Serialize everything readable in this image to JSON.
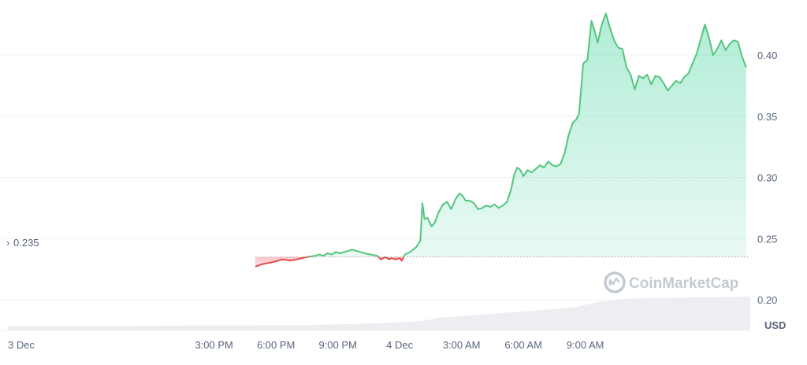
{
  "chart_data": {
    "type": "line",
    "currency": "USD",
    "baseline": {
      "value": 0.235,
      "label": "0.235"
    },
    "ylim": [
      0.175,
      0.445
    ],
    "y_ticks": [
      {
        "value": 0.4,
        "label": "0.40"
      },
      {
        "value": 0.35,
        "label": "0.35"
      },
      {
        "value": 0.3,
        "label": "0.30"
      },
      {
        "value": 0.25,
        "label": "0.25"
      },
      {
        "value": 0.2,
        "label": "0.20"
      }
    ],
    "x_ticks": [
      {
        "t": 0,
        "label": "3 Dec"
      },
      {
        "t": 10,
        "label": "3:00 PM"
      },
      {
        "t": 13,
        "label": "6:00 PM"
      },
      {
        "t": 16,
        "label": "9:00 PM"
      },
      {
        "t": 19,
        "label": "4 Dec"
      },
      {
        "t": 22,
        "label": "3:00 AM"
      },
      {
        "t": 25,
        "label": "6:00 AM"
      },
      {
        "t": 28,
        "label": "9:00 AM"
      }
    ],
    "series": [
      {
        "name": "",
        "points": [
          [
            12.0,
            0.227
          ],
          [
            12.3,
            0.229
          ],
          [
            12.6,
            0.23
          ],
          [
            12.9,
            0.231
          ],
          [
            13.3,
            0.233
          ],
          [
            13.7,
            0.232
          ],
          [
            14.0,
            0.233
          ],
          [
            14.5,
            0.235
          ],
          [
            14.9,
            0.236
          ],
          [
            15.1,
            0.237
          ],
          [
            15.3,
            0.236
          ],
          [
            15.5,
            0.238
          ],
          [
            15.7,
            0.237
          ],
          [
            15.9,
            0.239
          ],
          [
            16.1,
            0.238
          ],
          [
            16.3,
            0.239
          ],
          [
            16.5,
            0.24
          ],
          [
            16.7,
            0.241
          ],
          [
            16.9,
            0.24
          ],
          [
            17.1,
            0.239
          ],
          [
            17.3,
            0.238
          ],
          [
            17.6,
            0.237
          ],
          [
            17.9,
            0.236
          ],
          [
            18.1,
            0.233
          ],
          [
            18.3,
            0.235
          ],
          [
            18.5,
            0.233
          ],
          [
            18.6,
            0.234
          ],
          [
            18.8,
            0.233
          ],
          [
            19.0,
            0.234
          ],
          [
            19.1,
            0.232
          ],
          [
            19.25,
            0.237
          ],
          [
            19.5,
            0.239
          ],
          [
            19.8,
            0.243
          ],
          [
            20.0,
            0.248
          ],
          [
            20.1,
            0.279
          ],
          [
            20.2,
            0.266
          ],
          [
            20.35,
            0.267
          ],
          [
            20.55,
            0.26
          ],
          [
            20.7,
            0.263
          ],
          [
            20.9,
            0.272
          ],
          [
            21.1,
            0.278
          ],
          [
            21.3,
            0.28
          ],
          [
            21.5,
            0.274
          ],
          [
            21.7,
            0.282
          ],
          [
            21.9,
            0.287
          ],
          [
            22.05,
            0.285
          ],
          [
            22.2,
            0.281
          ],
          [
            22.4,
            0.281
          ],
          [
            22.6,
            0.279
          ],
          [
            22.8,
            0.274
          ],
          [
            23.0,
            0.275
          ],
          [
            23.2,
            0.277
          ],
          [
            23.4,
            0.276
          ],
          [
            23.6,
            0.278
          ],
          [
            23.8,
            0.275
          ],
          [
            24.0,
            0.277
          ],
          [
            24.2,
            0.28
          ],
          [
            24.4,
            0.29
          ],
          [
            24.55,
            0.302
          ],
          [
            24.7,
            0.308
          ],
          [
            24.85,
            0.306
          ],
          [
            25.0,
            0.301
          ],
          [
            25.2,
            0.306
          ],
          [
            25.4,
            0.304
          ],
          [
            25.6,
            0.307
          ],
          [
            25.8,
            0.31
          ],
          [
            26.0,
            0.308
          ],
          [
            26.2,
            0.313
          ],
          [
            26.4,
            0.31
          ],
          [
            26.6,
            0.309
          ],
          [
            26.8,
            0.311
          ],
          [
            27.0,
            0.32
          ],
          [
            27.2,
            0.335
          ],
          [
            27.4,
            0.345
          ],
          [
            27.55,
            0.347
          ],
          [
            27.7,
            0.352
          ],
          [
            27.9,
            0.393
          ],
          [
            28.1,
            0.396
          ],
          [
            28.3,
            0.428
          ],
          [
            28.45,
            0.42
          ],
          [
            28.6,
            0.41
          ],
          [
            28.8,
            0.425
          ],
          [
            29.0,
            0.434
          ],
          [
            29.2,
            0.422
          ],
          [
            29.4,
            0.412
          ],
          [
            29.6,
            0.406
          ],
          [
            29.8,
            0.405
          ],
          [
            30.0,
            0.39
          ],
          [
            30.2,
            0.384
          ],
          [
            30.4,
            0.372
          ],
          [
            30.6,
            0.383
          ],
          [
            30.8,
            0.381
          ],
          [
            31.0,
            0.384
          ],
          [
            31.2,
            0.376
          ],
          [
            31.4,
            0.383
          ],
          [
            31.6,
            0.382
          ],
          [
            31.8,
            0.377
          ],
          [
            32.0,
            0.371
          ],
          [
            32.2,
            0.375
          ],
          [
            32.4,
            0.379
          ],
          [
            32.6,
            0.377
          ],
          [
            32.8,
            0.382
          ],
          [
            33.0,
            0.385
          ],
          [
            33.2,
            0.393
          ],
          [
            33.4,
            0.401
          ],
          [
            33.6,
            0.413
          ],
          [
            33.8,
            0.425
          ],
          [
            34.0,
            0.414
          ],
          [
            34.2,
            0.4
          ],
          [
            34.4,
            0.405
          ],
          [
            34.6,
            0.412
          ],
          [
            34.8,
            0.404
          ],
          [
            35.0,
            0.409
          ],
          [
            35.2,
            0.412
          ],
          [
            35.4,
            0.411
          ],
          [
            35.6,
            0.399
          ],
          [
            35.8,
            0.39
          ]
        ]
      }
    ],
    "volume_profile": [
      [
        12.0,
        0.08
      ],
      [
        14.0,
        0.1
      ],
      [
        16.0,
        0.12
      ],
      [
        18.0,
        0.14
      ],
      [
        20.0,
        0.18
      ],
      [
        21.0,
        0.25
      ],
      [
        22.0,
        0.28
      ],
      [
        24.0,
        0.34
      ],
      [
        26.0,
        0.4
      ],
      [
        27.5,
        0.45
      ],
      [
        28.5,
        0.55
      ],
      [
        30.0,
        0.62
      ],
      [
        31.0,
        0.63
      ],
      [
        32.5,
        0.64
      ],
      [
        34.5,
        0.65
      ],
      [
        35.8,
        0.66
      ]
    ],
    "colors": {
      "up": "#52c67e",
      "down": "#e5484d",
      "up_fill": "#16c784",
      "down_fill": "#ea3943",
      "grid": "#eff2f5",
      "baseline": "#a7acb3",
      "volume": "#eceef2"
    }
  },
  "watermark": {
    "text": "CoinMarketCap",
    "icon": "coinmarketcap-logo-icon"
  },
  "currency_label": "USD"
}
